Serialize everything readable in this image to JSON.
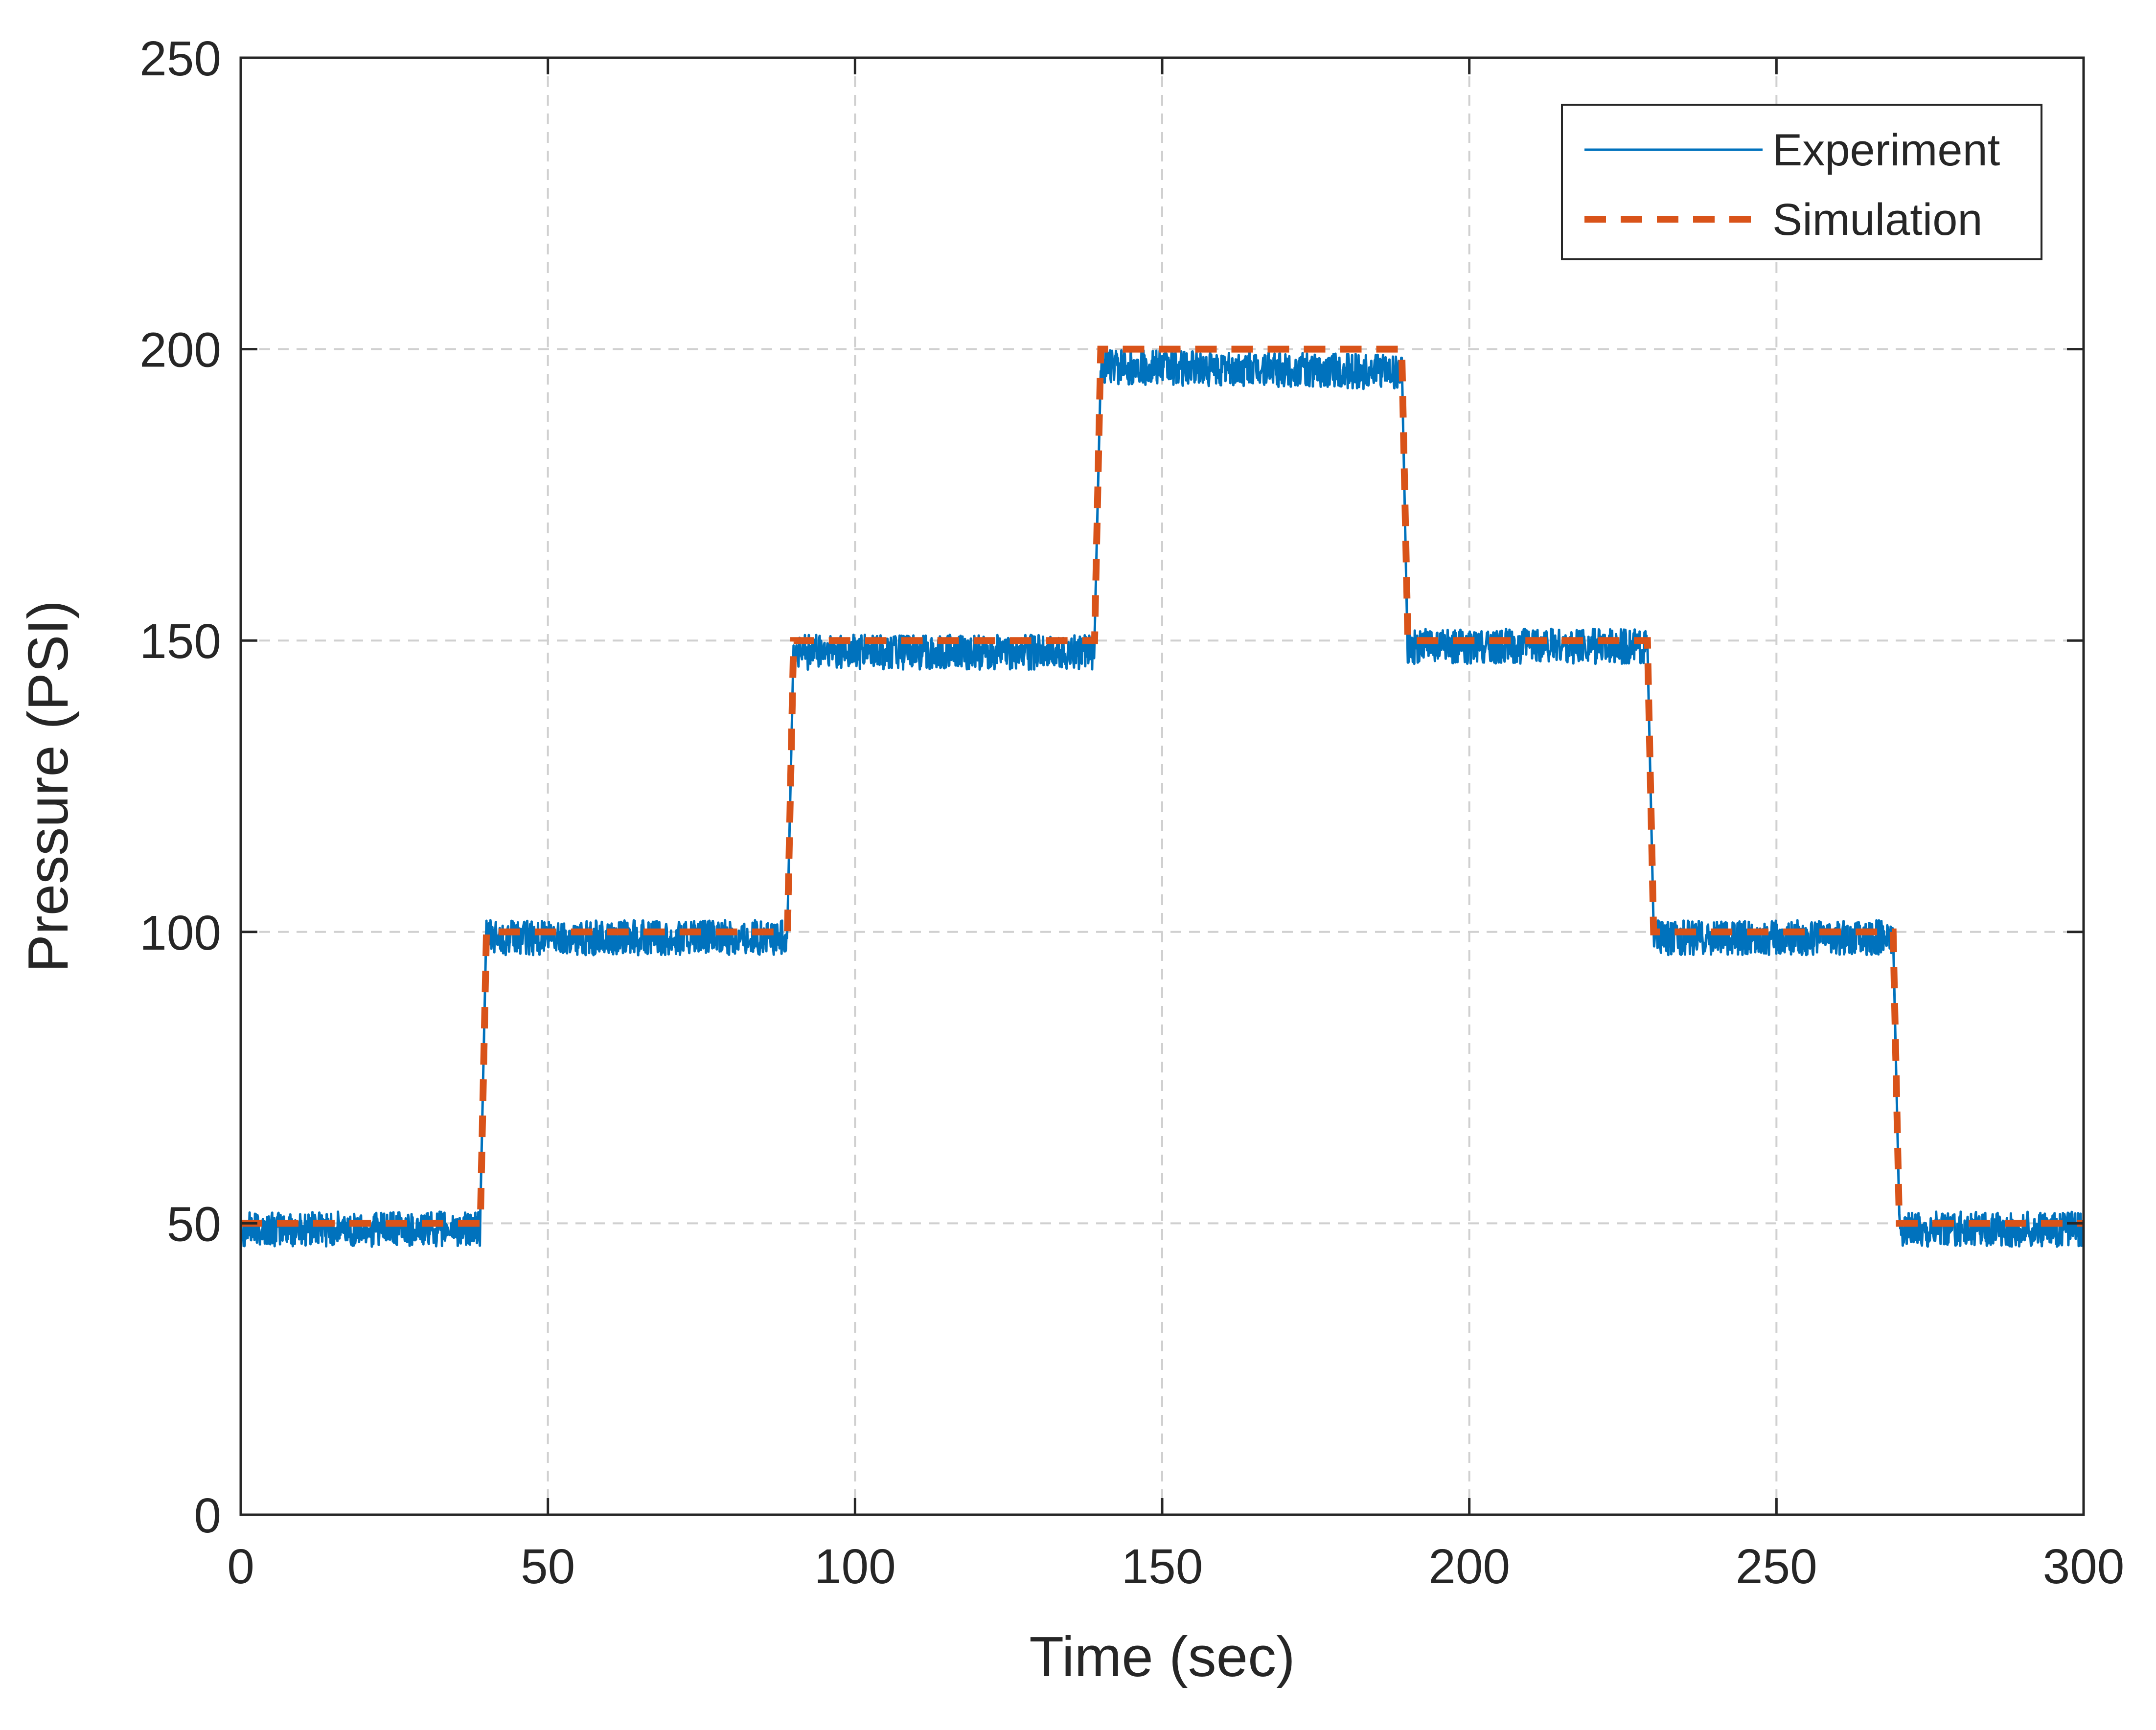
{
  "chart_data": {
    "type": "line",
    "title": "",
    "xlabel": "Time (sec)",
    "ylabel": "Pressure (PSI)",
    "xlim": [
      0,
      300
    ],
    "ylim": [
      0,
      250
    ],
    "xticks": [
      0,
      50,
      100,
      150,
      200,
      250,
      300
    ],
    "yticks": [
      0,
      50,
      100,
      150,
      200,
      250
    ],
    "xtick_labels": [
      "0",
      "50",
      "100",
      "150",
      "200",
      "250",
      "300"
    ],
    "ytick_labels": [
      "0",
      "50",
      "100",
      "150",
      "200",
      "250"
    ],
    "grid": true,
    "legend_position": "top-right",
    "series": [
      {
        "name": "Experiment",
        "style": "solid",
        "color": "#0072BD",
        "noise_amplitude": 3,
        "x": [
          0,
          39,
          40,
          89,
          90,
          139,
          140,
          189,
          190,
          229,
          230,
          269,
          270,
          300
        ],
        "y": [
          49,
          49,
          99,
          99,
          148,
          148,
          197,
          196,
          149,
          149,
          99,
          99,
          49,
          49
        ]
      },
      {
        "name": "Simulation",
        "style": "dashed",
        "color": "#D95319",
        "x": [
          0,
          39,
          40,
          89,
          90,
          139,
          140,
          189,
          190,
          229,
          230,
          269,
          270,
          300
        ],
        "y": [
          50,
          50,
          100,
          100,
          150,
          150,
          200,
          200,
          150,
          150,
          100,
          100,
          50,
          50
        ]
      }
    ]
  }
}
